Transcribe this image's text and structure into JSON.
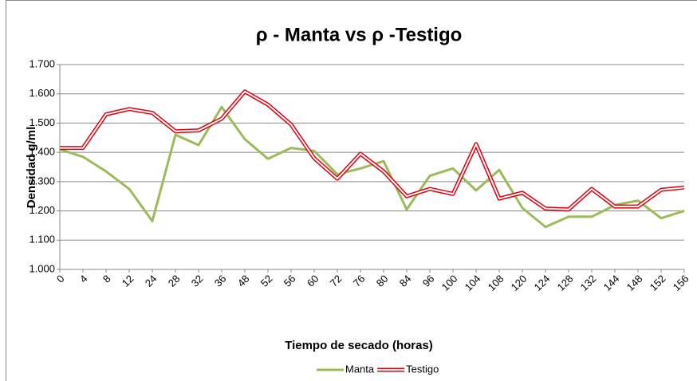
{
  "chart_data": {
    "type": "line",
    "title": "ρ - Manta vs  ρ -Testigo",
    "x_label": "Tiempo de secado (horas)",
    "y_label": "Densidad g/ml",
    "categories": [
      "0",
      "4",
      "8",
      "12",
      "24",
      "28",
      "32",
      "36",
      "48",
      "52",
      "56",
      "60",
      "72",
      "76",
      "80",
      "84",
      "96",
      "100",
      "104",
      "108",
      "120",
      "124",
      "128",
      "132",
      "144",
      "148",
      "152",
      "156"
    ],
    "series": [
      {
        "name": "Manta",
        "color": "#9bbb59",
        "line_style": "solid",
        "values": [
          1.41,
          1.385,
          1.335,
          1.275,
          1.165,
          1.46,
          1.425,
          1.555,
          1.445,
          1.378,
          1.415,
          1.405,
          1.325,
          1.345,
          1.37,
          1.205,
          1.32,
          1.345,
          1.27,
          1.34,
          1.21,
          1.145,
          1.18,
          1.18,
          1.22,
          1.235,
          1.175,
          1.2
        ]
      },
      {
        "name": "Testigo",
        "color": "#e3000f",
        "line_style": "double",
        "values": [
          1.415,
          1.415,
          1.53,
          1.548,
          1.535,
          1.472,
          1.475,
          1.515,
          1.608,
          1.563,
          1.495,
          1.38,
          1.31,
          1.395,
          1.335,
          1.25,
          1.275,
          1.258,
          1.428,
          1.242,
          1.262,
          1.208,
          1.205,
          1.275,
          1.215,
          1.215,
          1.272,
          1.28
        ]
      }
    ],
    "ylim": [
      1.0,
      1.7
    ],
    "yticks": [
      {
        "value": 1.0,
        "label": "1.000"
      },
      {
        "value": 1.1,
        "label": "1.100"
      },
      {
        "value": 1.2,
        "label": "1.200"
      },
      {
        "value": 1.3,
        "label": "1.300"
      },
      {
        "value": 1.4,
        "label": "1.400"
      },
      {
        "value": 1.5,
        "label": "1.500"
      },
      {
        "value": 1.6,
        "label": "1.600"
      },
      {
        "value": 1.7,
        "label": "1.700"
      }
    ],
    "grid": true,
    "legend": "bottom"
  }
}
